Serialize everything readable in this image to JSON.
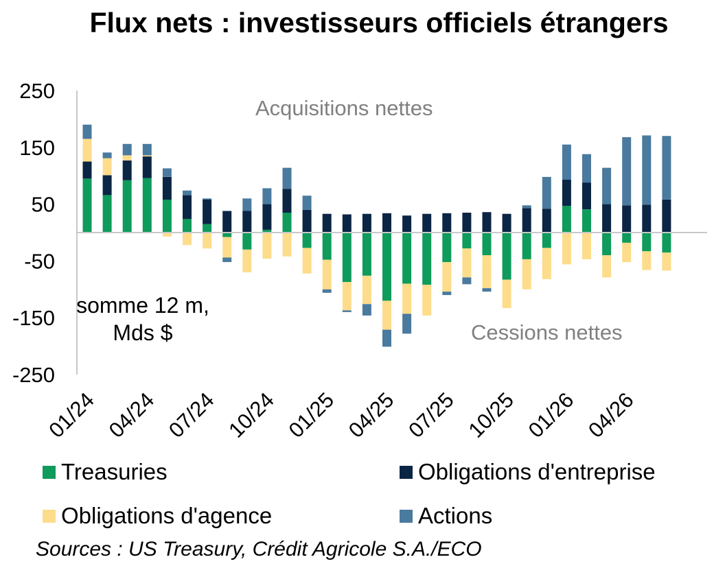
{
  "title": "Flux nets : investisseurs officiels étrangers",
  "unit_note": "somme 12 m, Mds $",
  "source": "Sources : US Treasury, Crédit Agricole S.A./ECO",
  "chart_data": {
    "type": "bar",
    "stacked": true,
    "title": "Flux nets : investisseurs officiels étrangers",
    "xlabel": "",
    "ylabel": "",
    "ylim": [
      -250,
      250
    ],
    "yticks": [
      250,
      150,
      50,
      -50,
      -150,
      -250
    ],
    "x_tick_labels": [
      "01/24",
      "04/24",
      "07/24",
      "10/24",
      "01/25",
      "04/25",
      "07/25",
      "10/25",
      "01/26",
      "04/26"
    ],
    "x_tick_every": 3,
    "categories": [
      "01/24",
      "02/24",
      "03/24",
      "04/24",
      "05/24",
      "06/24",
      "07/24",
      "08/24",
      "09/24",
      "10/24",
      "11/24",
      "12/24",
      "01/25",
      "02/25",
      "03/25",
      "04/25",
      "05/25",
      "06/25",
      "07/25",
      "08/25",
      "09/25",
      "10/25",
      "11/25",
      "12/25",
      "01/26",
      "02/26",
      "03/26",
      "04/26",
      "05/26",
      "06/26"
    ],
    "series": [
      {
        "name": "Treasuries",
        "color": "#0f9b5b",
        "values": [
          95,
          66,
          92,
          96,
          58,
          24,
          15,
          -8,
          -30,
          5,
          35,
          -27,
          -48,
          -87,
          -76,
          -120,
          -90,
          -92,
          -52,
          -28,
          -40,
          -83,
          -47,
          -27,
          47,
          41,
          -40,
          -18,
          -33,
          -35
        ]
      },
      {
        "name": "Obligations d'entreprise",
        "color": "#0b2545",
        "values": [
          30,
          35,
          35,
          38,
          40,
          42,
          43,
          38,
          38,
          45,
          42,
          40,
          33,
          32,
          33,
          34,
          30,
          33,
          34,
          35,
          36,
          33,
          43,
          42,
          46,
          47,
          50,
          48,
          49,
          58
        ]
      },
      {
        "name": "Obligations d'agence",
        "color": "#fddc8c",
        "values": [
          40,
          30,
          9,
          2,
          -7,
          -22,
          -28,
          -36,
          -40,
          -46,
          -42,
          -45,
          -52,
          -50,
          -50,
          -51,
          -53,
          -54,
          -52,
          -51,
          -58,
          -50,
          -53,
          -55,
          -56,
          -47,
          -39,
          -34,
          -33,
          -32
        ]
      },
      {
        "name": "Actions",
        "color": "#4a7a9e",
        "values": [
          25,
          10,
          20,
          20,
          15,
          8,
          2,
          -8,
          22,
          28,
          37,
          25,
          -6,
          -3,
          -20,
          -30,
          -35,
          0,
          -6,
          -12,
          -6,
          0,
          5,
          56,
          62,
          50,
          64,
          120,
          122,
          112
        ]
      }
    ],
    "annotations": [
      "Acquisitions nettes",
      "Cessions nettes"
    ],
    "legend": "bottom"
  }
}
